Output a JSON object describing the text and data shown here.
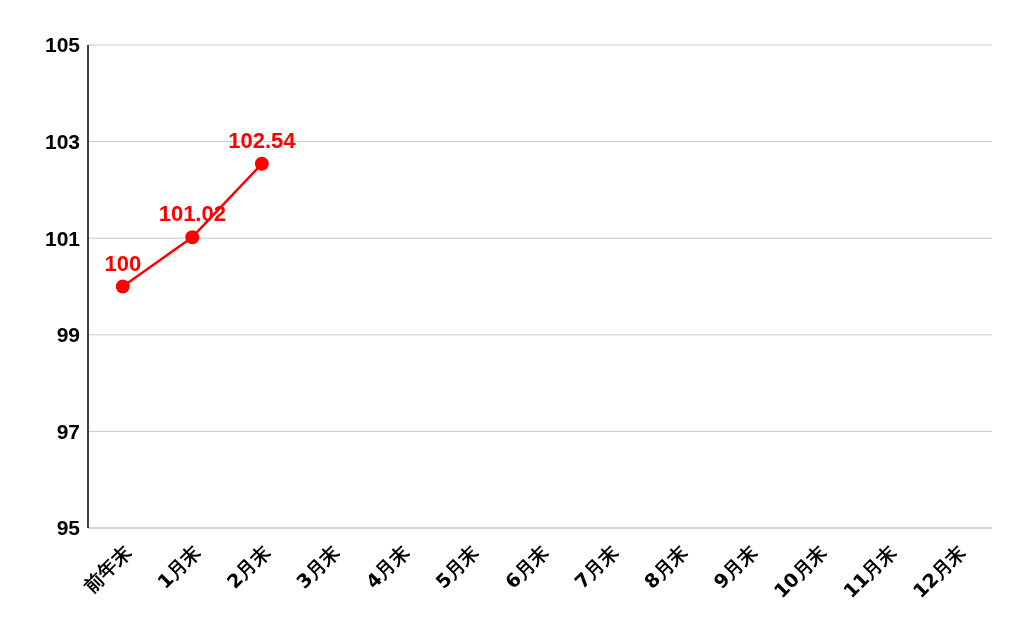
{
  "chart_data": {
    "type": "line",
    "categories": [
      "前年末",
      "1月末",
      "2月末",
      "3月末",
      "4月末",
      "5月末",
      "6月末",
      "7月末",
      "8月末",
      "9月末",
      "10月末",
      "11月末",
      "12月末"
    ],
    "series": [
      {
        "color": "#ff0000",
        "values": [
          100,
          101.02,
          102.54,
          null,
          null,
          null,
          null,
          null,
          null,
          null,
          null,
          null,
          null
        ]
      }
    ],
    "ylim": [
      95,
      105
    ],
    "yticks": [
      95,
      97,
      99,
      101,
      103,
      105
    ],
    "grid": "y",
    "marker": "circle",
    "line_style": "solid",
    "data_labels": true,
    "legend": false
  }
}
